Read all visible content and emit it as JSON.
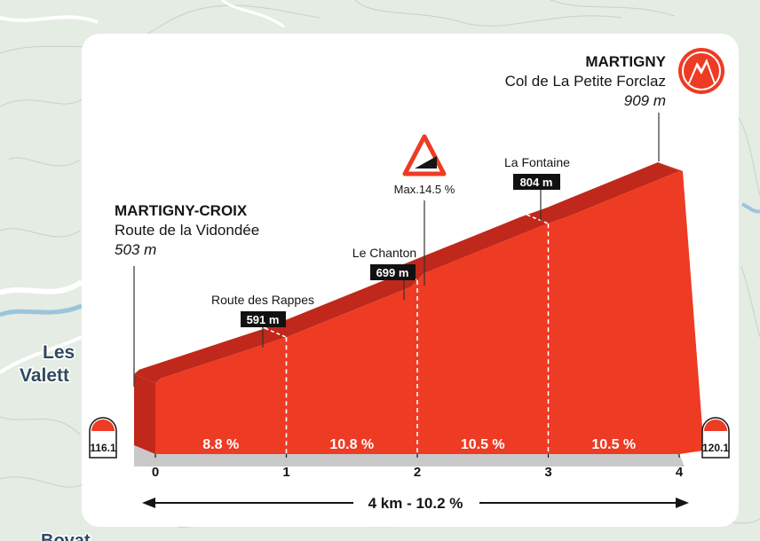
{
  "map": {
    "place_label_line1": "Les",
    "place_label_line2": "Valett",
    "place_label_bottom": "Bovat"
  },
  "start": {
    "name": "MARTIGNY-CROIX",
    "road": "Route de la Vidondée",
    "altitude": "503 m",
    "km_marker": "116.1"
  },
  "finish": {
    "name": "MARTIGNY",
    "col": "Col de La Petite Forclaz",
    "altitude": "909 m",
    "km_marker": "120.1"
  },
  "summary": "4 km - 10.2  %",
  "max_gradient_label": "Max.14.5 %",
  "waypoints": [
    {
      "name": "Route des Rappes",
      "altitude": "591 m"
    },
    {
      "name": "Le Chanton",
      "altitude": "699 m"
    },
    {
      "name": "La Fontaine",
      "altitude": "804 m"
    }
  ],
  "colors": {
    "profile_front": "#ee3b24",
    "profile_top": "#c0281b",
    "base": "#c9c9c9",
    "map_background": "#e4ece4",
    "panel": "#ffffff",
    "badge_bg": "#111111"
  },
  "icons": {
    "finish": "mountain-summit-icon",
    "max_gradient": "steep-gradient-warning-icon",
    "km_markers": "kilometre-stone-icon"
  },
  "chart_data": {
    "type": "area",
    "x_unit": "km",
    "y_unit": "m",
    "x": [
      0,
      0.04,
      1,
      1.95,
      2.05,
      2.95,
      3.15,
      4
    ],
    "y": [
      503,
      512,
      591,
      687,
      713,
      804,
      822,
      909
    ],
    "x_ticks": [
      "0",
      "1",
      "2",
      "3",
      "4"
    ],
    "segments": [
      {
        "from_km": 0,
        "to_km": 1,
        "gradient": "8.8 %"
      },
      {
        "from_km": 1,
        "to_km": 2,
        "gradient": "10.8 %"
      },
      {
        "from_km": 2,
        "to_km": 3,
        "gradient": "10.5 %"
      },
      {
        "from_km": 3,
        "to_km": 4,
        "gradient": "10.5 %"
      }
    ],
    "waypoint_km": [
      1,
      2,
      3
    ],
    "max_gradient_km": 2
  }
}
